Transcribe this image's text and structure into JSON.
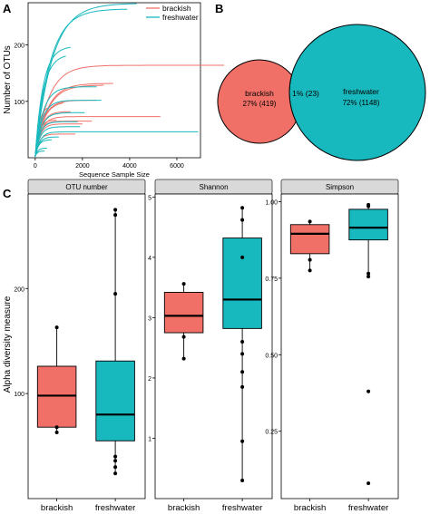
{
  "panel_labels": {
    "a": "A",
    "b": "B",
    "c": "C"
  },
  "colors": {
    "brackish": "#f07068",
    "freshwater": "#17b9be",
    "strip": "#d9d9d9",
    "grid_line": "#ffffff",
    "panel_bg": "#ffffff"
  },
  "chart_data": [
    {
      "panel": "A",
      "type": "line",
      "xlabel": "Sequence Sample Size",
      "ylabel": "Number of OTUs",
      "xlim": [
        -300,
        7000
      ],
      "ylim": [
        0,
        275
      ],
      "x_ticks": [
        "0",
        "2000",
        "4000",
        "6000"
      ],
      "y_ticks": [
        "100",
        "200"
      ],
      "legend": {
        "position": "top-right",
        "entries": [
          "brackish",
          "freshwater"
        ]
      },
      "series": [
        {
          "name": "brackish",
          "curves": [
            {
              "n": 8000,
              "asym": 162,
              "k": 0.0018
            },
            {
              "n": 5300,
              "asym": 71,
              "k": 0.004
            },
            {
              "n": 3300,
              "asym": 130,
              "k": 0.002
            },
            {
              "n": 2900,
              "asym": 127,
              "k": 0.002
            },
            {
              "n": 2600,
              "asym": 100,
              "k": 0.003
            },
            {
              "n": 2400,
              "asym": 63,
              "k": 0.005
            },
            {
              "n": 2000,
              "asym": 58,
              "k": 0.005
            },
            {
              "n": 1700,
              "asym": 40,
              "k": 0.006
            },
            {
              "n": 1500,
              "asym": 80,
              "k": 0.004
            },
            {
              "n": 1200,
              "asym": 98,
              "k": 0.003
            },
            {
              "n": 900,
              "asym": 65,
              "k": 0.006
            },
            {
              "n": 600,
              "asym": 90,
              "k": 0.006
            }
          ]
        },
        {
          "name": "freshwater",
          "curves": [
            {
              "n": 4300,
              "asym": 272,
              "k": 0.0014
            },
            {
              "n": 6900,
              "asym": 44,
              "k": 0.005
            },
            {
              "n": 3900,
              "asym": 262,
              "k": 0.0016
            },
            {
              "n": 1500,
              "asym": 196,
              "k": 0.003
            },
            {
              "n": 2600,
              "asym": 124,
              "k": 0.003
            },
            {
              "n": 2800,
              "asym": 100,
              "k": 0.0035
            },
            {
              "n": 2100,
              "asym": 78,
              "k": 0.004
            },
            {
              "n": 1800,
              "asym": 62,
              "k": 0.005
            },
            {
              "n": 1900,
              "asym": 53,
              "k": 0.005
            },
            {
              "n": 1300,
              "asym": 182,
              "k": 0.003
            },
            {
              "n": 1000,
              "asym": 35,
              "k": 0.006
            },
            {
              "n": 700,
              "asym": 30,
              "k": 0.007
            },
            {
              "n": 500,
              "asym": 15,
              "k": 0.01
            },
            {
              "n": 400,
              "asym": 10,
              "k": 0.012
            }
          ]
        }
      ]
    },
    {
      "panel": "B",
      "type": "venn",
      "sets": [
        {
          "name": "brackish",
          "label": "brackish",
          "value_label": "27% (419)",
          "count": 419
        },
        {
          "name": "freshwater",
          "label": "freshwater",
          "value_label": "72% (1148)",
          "count": 1148
        }
      ],
      "overlap_label": "1% (23)",
      "overlap_count": 23
    },
    {
      "panel": "C",
      "type": "box",
      "ylabel": "Alpha diversity measure",
      "categories": [
        "brackish",
        "freshwater"
      ],
      "facets": [
        {
          "title": "OTU number",
          "ylim": [
            0,
            290
          ],
          "y_ticks": [
            100,
            200
          ],
          "boxes": [
            {
              "q1": 68,
              "median": 98,
              "q3": 126,
              "whisker_low": 63,
              "whisker_high": 163,
              "points": [
                63,
                68,
                163
              ]
            },
            {
              "q1": 55,
              "median": 80,
              "q3": 131,
              "whisker_low": 24,
              "whisker_high": 275,
              "points": [
                24,
                30,
                36,
                40,
                195,
                270,
                275
              ]
            }
          ]
        },
        {
          "title": "Shannon",
          "ylim": [
            0,
            5.05
          ],
          "y_ticks": [
            1,
            2,
            3,
            4,
            5
          ],
          "boxes": [
            {
              "q1": 2.75,
              "median": 3.03,
              "q3": 3.42,
              "whisker_low": 2.32,
              "whisker_high": 3.56,
              "points": [
                2.32,
                2.68,
                3.56
              ]
            },
            {
              "q1": 2.82,
              "median": 3.3,
              "q3": 4.32,
              "whisker_low": 0.3,
              "whisker_high": 4.82,
              "points": [
                0.3,
                0.95,
                1.85,
                2.1,
                2.4,
                2.6,
                4.0,
                4.62,
                4.82
              ]
            }
          ]
        },
        {
          "title": "Simpson",
          "ylim": [
            0.03,
            1.025
          ],
          "y_ticks": [
            0.25,
            0.5,
            0.75,
            1.0
          ],
          "y_tick_labels": [
            "0.25",
            "0.50",
            "0.75",
            "1.00"
          ],
          "boxes": [
            {
              "q1": 0.83,
              "median": 0.895,
              "q3": 0.925,
              "whisker_low": 0.775,
              "whisker_high": 0.935,
              "points": [
                0.775,
                0.81,
                0.935
              ]
            },
            {
              "q1": 0.875,
              "median": 0.915,
              "q3": 0.975,
              "whisker_low": 0.755,
              "whisker_high": 0.99,
              "points": [
                0.08,
                0.38,
                0.755,
                0.765,
                0.985,
                0.99
              ]
            }
          ]
        }
      ]
    }
  ]
}
